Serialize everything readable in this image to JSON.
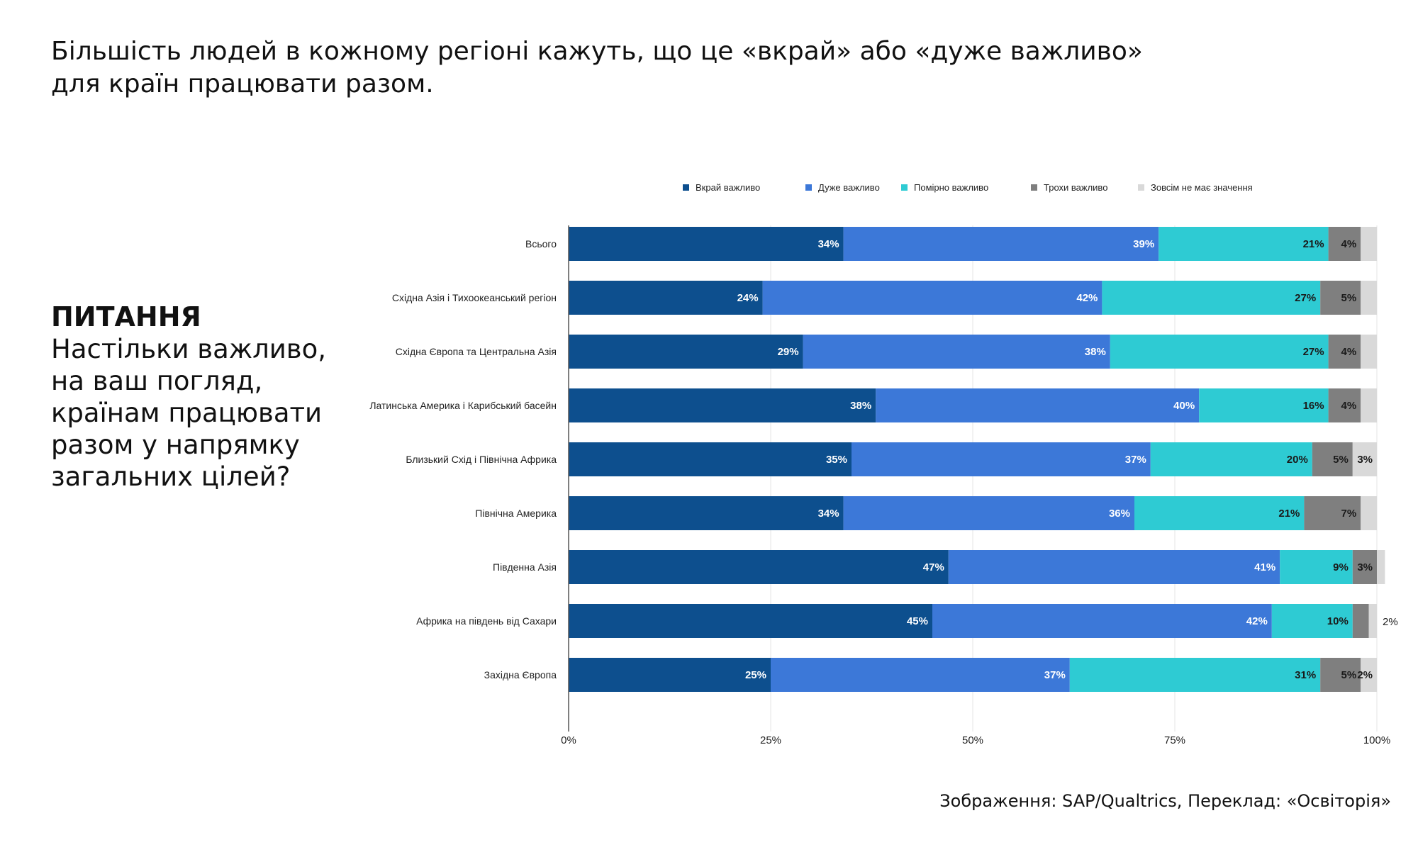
{
  "headline": {
    "line1": "Більшість людей в кожному регіоні кажуть, що це «вкрай» або «дуже важливо»",
    "line2": "для країн працювати разом."
  },
  "question": {
    "label": "ПИТАННЯ",
    "lines": [
      "Настільки важливо,",
      "на ваш погляд,",
      "країнам працювати",
      "разом у напрямку",
      "загальних цілей?"
    ]
  },
  "source": "Зображення: SAP/Qualtrics, Переклад: «Освіторія»",
  "chart_data": {
    "type": "bar",
    "orientation": "horizontal",
    "stacked": true,
    "title": "",
    "xlabel": "",
    "ylabel": "",
    "xlim": [
      0,
      100
    ],
    "x_ticks": [
      "0%",
      "25%",
      "50%",
      "75%",
      "100%"
    ],
    "x_tick_values": [
      0,
      25,
      50,
      75,
      100
    ],
    "grid": true,
    "legend_position": "top",
    "categories": [
      "Всього",
      "Східна Азія і Тихоокеанський регіон",
      "Східна Європа та Центральна Азія",
      "Латинська Америка і Карибський басейн",
      "Близький Схід і Північна Африка",
      "Північна Америка",
      "Південна Азія",
      "Африка на південь від Сахари",
      "Західна Європа"
    ],
    "series": [
      {
        "name": "Вкрай важливо",
        "color": "#0d4f8e",
        "label_color": "#ffffff",
        "values": [
          34,
          24,
          29,
          38,
          35,
          34,
          47,
          45,
          25
        ],
        "labels": [
          "34%",
          "24%",
          "29%",
          "38%",
          "35%",
          "34%",
          "47%",
          "45%",
          "25%"
        ]
      },
      {
        "name": "Дуже важливо",
        "color": "#3c78d8",
        "label_color": "#ffffff",
        "values": [
          39,
          42,
          38,
          40,
          37,
          36,
          41,
          42,
          37
        ],
        "labels": [
          "39%",
          "42%",
          "38%",
          "40%",
          "37%",
          "36%",
          "41%",
          "42%",
          "37%"
        ]
      },
      {
        "name": "Помірно важливо",
        "color": "#2ecbd3",
        "label_color": "#1a1a1a",
        "values": [
          21,
          27,
          27,
          16,
          20,
          21,
          9,
          10,
          31
        ],
        "labels": [
          "21%",
          "27%",
          "27%",
          "16%",
          "20%",
          "21%",
          "9%",
          "10%",
          "31%"
        ]
      },
      {
        "name": "Трохи важливо",
        "color": "#7f7f7f",
        "label_color": "#1a1a1a",
        "values": [
          4,
          5,
          4,
          4,
          5,
          7,
          3,
          2,
          5
        ],
        "labels": [
          "4%",
          "5%",
          "4%",
          "4%",
          "5%",
          "7%",
          "3%",
          "",
          "5%"
        ]
      },
      {
        "name": "Зовсім не має значення",
        "color": "#d9d9d9",
        "label_color": "#1a1a1a",
        "values": [
          2,
          2,
          2,
          2,
          3,
          2,
          1,
          1,
          2
        ],
        "labels": [
          "",
          "",
          "",
          "",
          "3%",
          "",
          "",
          "",
          "2%"
        ]
      }
    ],
    "annotations": [
      {
        "category": "Африка на південь від Сахари",
        "text": "2%",
        "position": "right-of-bar",
        "color": "#8a8a8a"
      }
    ]
  }
}
